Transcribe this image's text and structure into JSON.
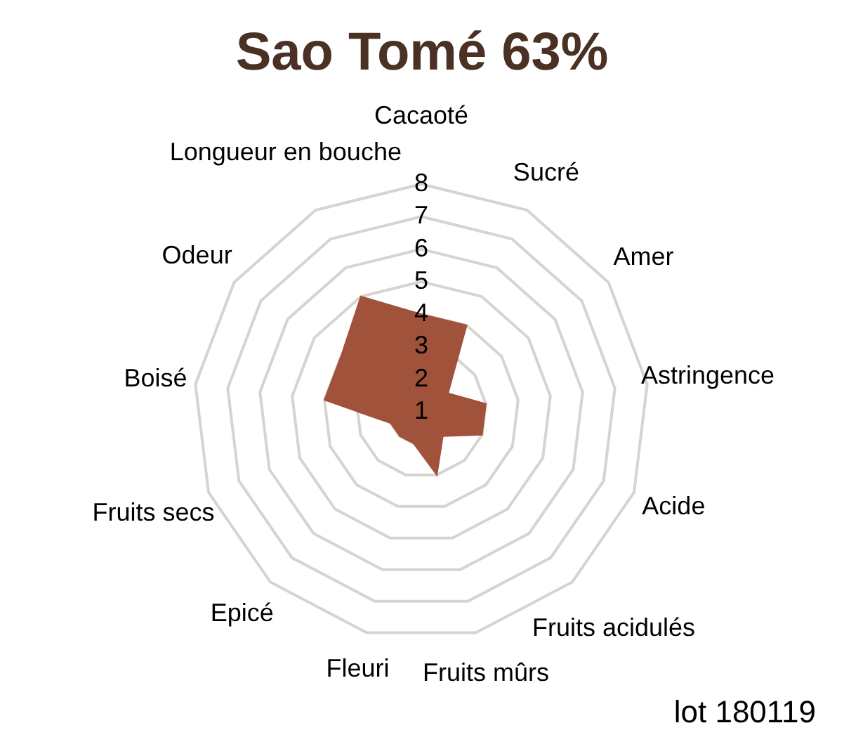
{
  "chart_data": {
    "type": "radar",
    "title": "Sao Tomé 63%",
    "categories": [
      "Cacaoté",
      "Sucré",
      "Amer",
      "Astringence",
      "Acide",
      "Fruits acidulés",
      "Fruits mûrs",
      "Fleuri",
      "Epicé",
      "Fruits secs",
      "Boisé",
      "Odeur",
      "Longueur en bouche"
    ],
    "series": [
      {
        "color": "#a0523a",
        "values": [
          4,
          4,
          2,
          3,
          3,
          2,
          3,
          2,
          2,
          2,
          4,
          4,
          5
        ]
      }
    ],
    "ylim": [
      1,
      8
    ],
    "yticks": [
      1,
      2,
      3,
      4,
      5,
      6,
      7,
      8
    ],
    "grid": true,
    "annotations": [
      "lot 180119"
    ]
  }
}
